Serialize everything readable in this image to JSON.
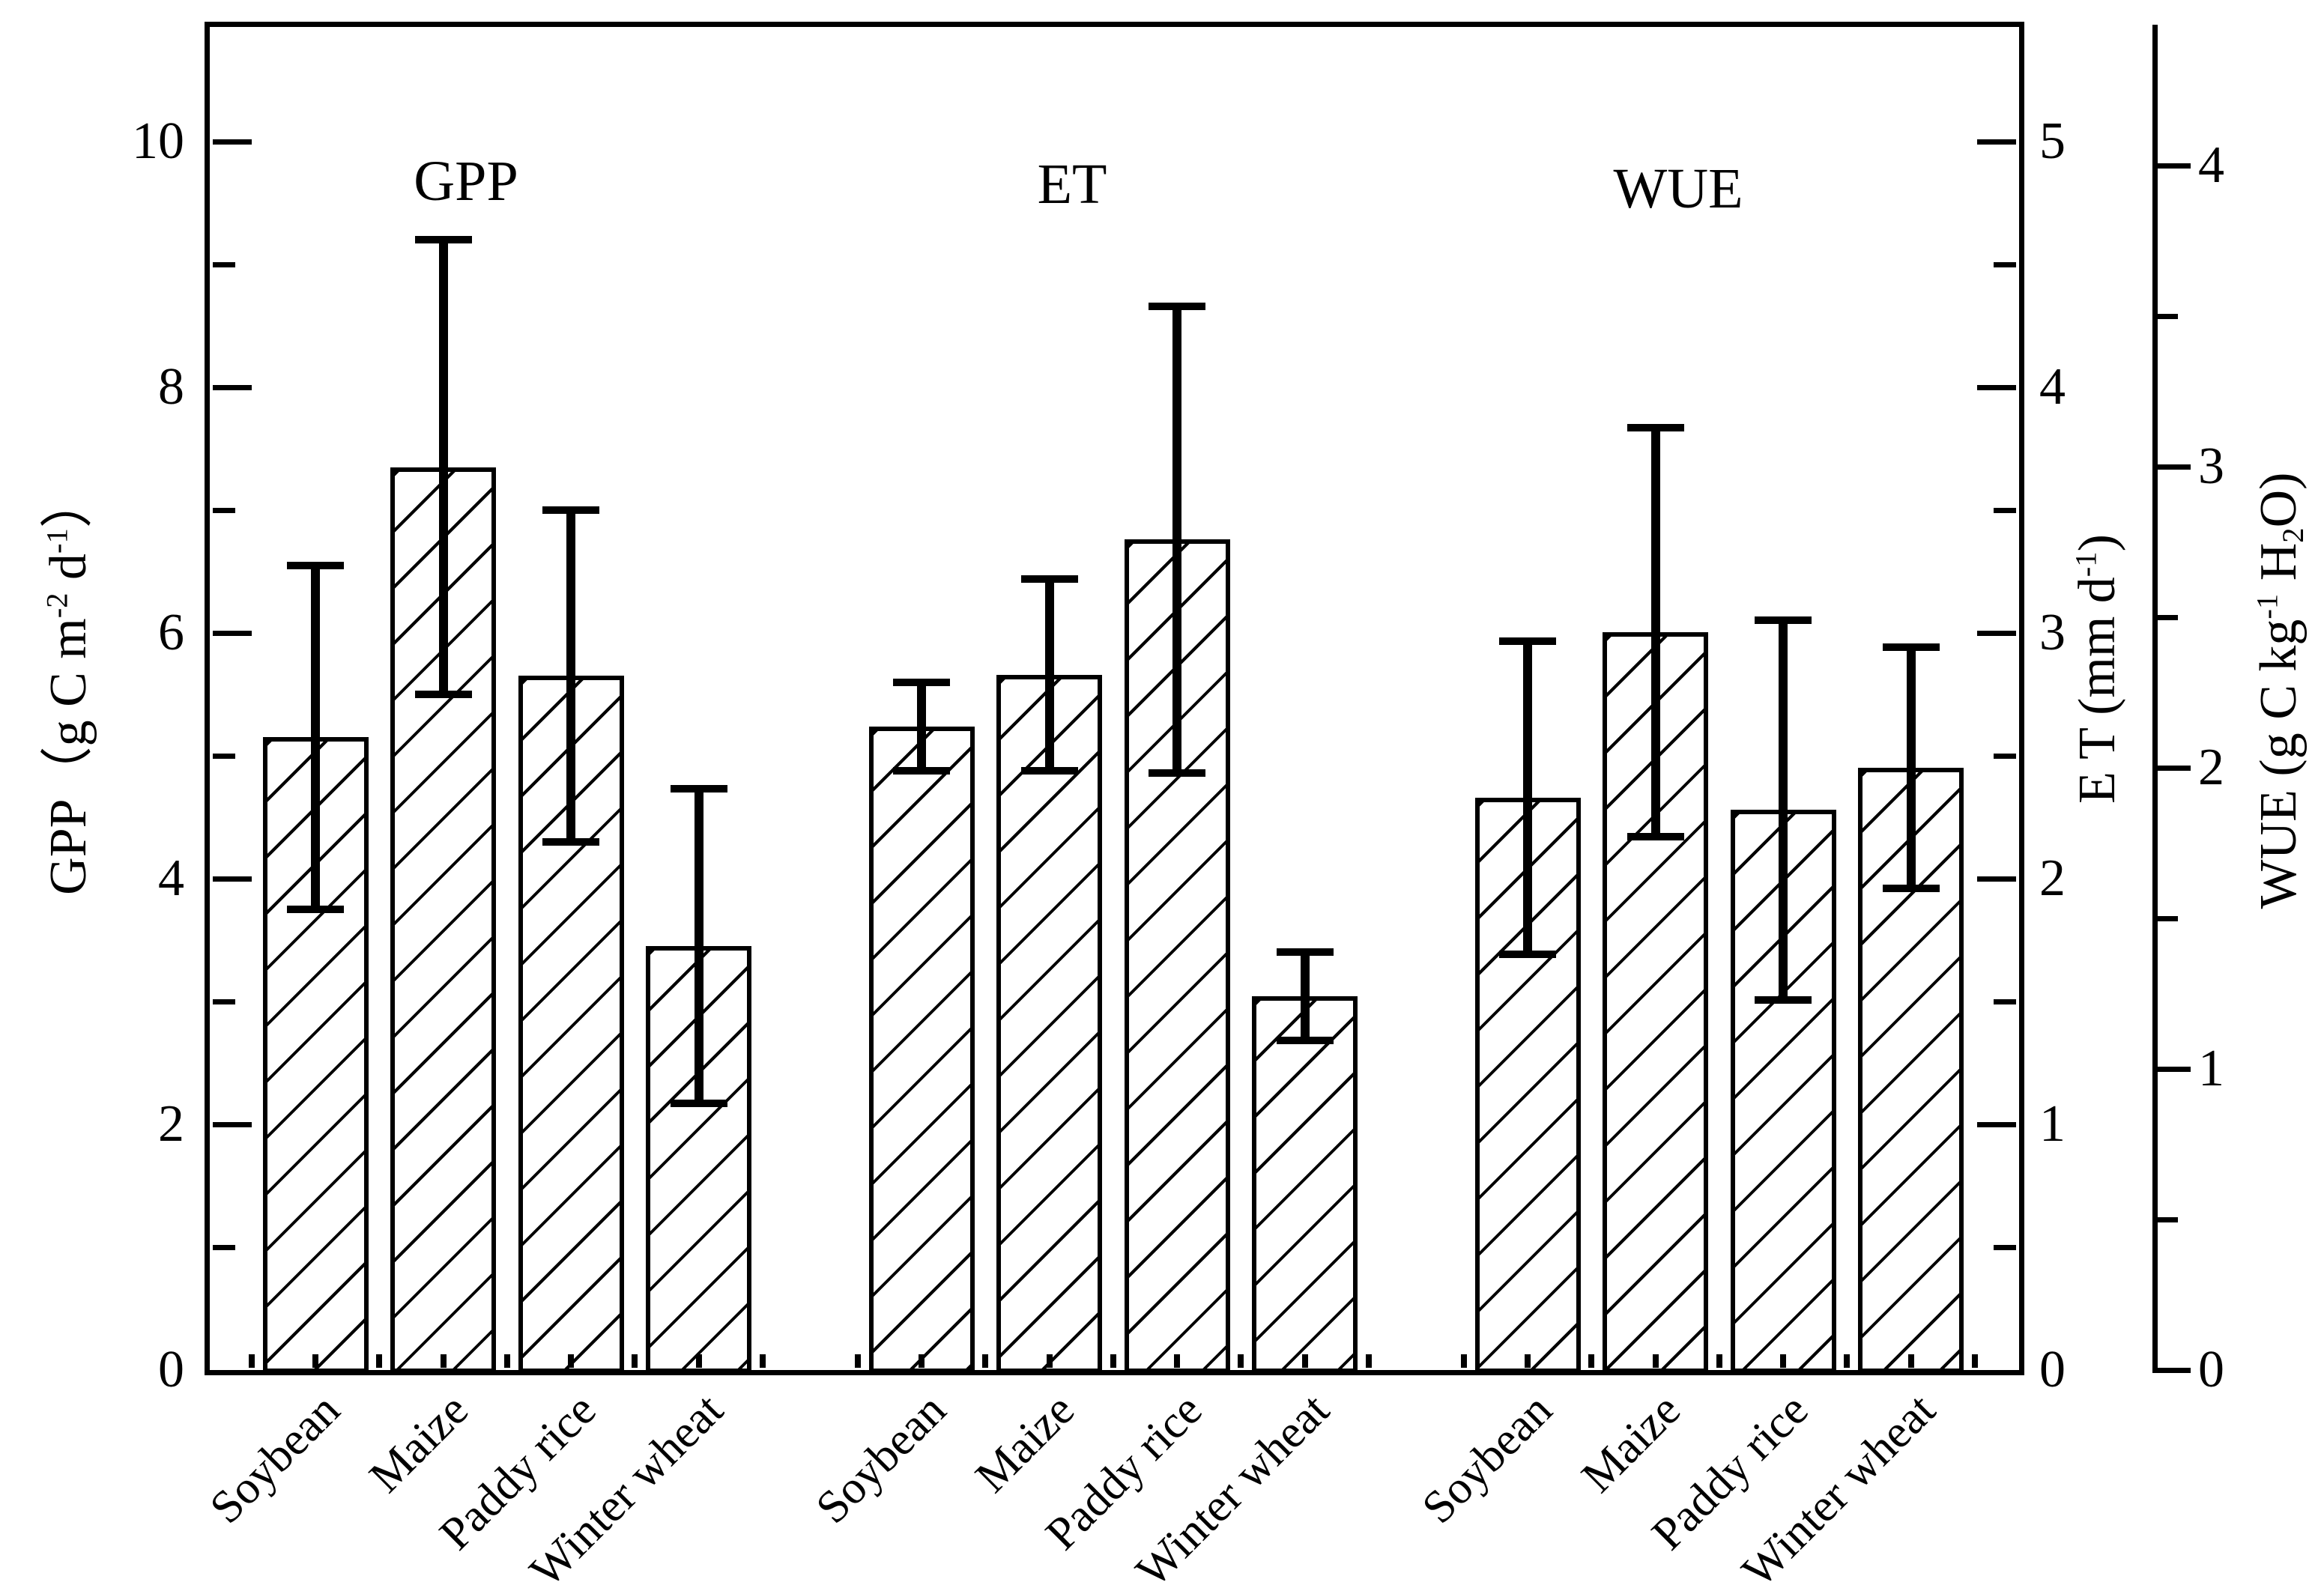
{
  "figure": {
    "background": "#ffffff",
    "ink": "#000000"
  },
  "chart_data": {
    "type": "bar",
    "title": "",
    "categories": [
      "Soybean",
      "Maize",
      "Paddy rice",
      "Winter wheat"
    ],
    "groups": [
      {
        "name": "GPP",
        "axis": "left",
        "values": [
          5.15,
          7.35,
          5.65,
          3.45
        ],
        "errors": [
          1.4,
          1.85,
          1.35,
          1.28
        ]
      },
      {
        "name": "ET",
        "axis": "et",
        "values": [
          2.62,
          2.83,
          3.38,
          1.52
        ],
        "errors": [
          0.18,
          0.39,
          0.95,
          0.18
        ]
      },
      {
        "name": "WUE",
        "axis": "wue",
        "values": [
          1.9,
          2.45,
          1.86,
          2.0
        ],
        "errors": [
          0.52,
          0.68,
          0.63,
          0.4
        ]
      }
    ],
    "axes": {
      "left": {
        "title_parts": [
          {
            "t": "GPP（g C m"
          },
          {
            "sup": "-2"
          },
          {
            "t": " d"
          },
          {
            "sup": "-1"
          },
          {
            "t": "）"
          }
        ],
        "tick_labels": [
          "0",
          "2",
          "4",
          "6",
          "8",
          "10"
        ],
        "tick_values": [
          0,
          2,
          4,
          6,
          8,
          10
        ],
        "minor_values": [
          1,
          3,
          5,
          7,
          9
        ],
        "range": [
          0,
          10
        ]
      },
      "et": {
        "title_parts": [
          {
            "t": "E T (mm d"
          },
          {
            "sup": "-1"
          },
          {
            "t": ")"
          }
        ],
        "tick_labels": [
          "0",
          "1",
          "2",
          "3",
          "4",
          "5"
        ],
        "tick_values": [
          0,
          1,
          2,
          3,
          4,
          5
        ],
        "minor_values": [
          0.5,
          1.5,
          2.5,
          3.5,
          4.5
        ],
        "range": [
          0,
          5
        ]
      },
      "wue": {
        "title_parts": [
          {
            "t": "WUE (g C kg"
          },
          {
            "sup": "-1"
          },
          {
            "t": " H"
          },
          {
            "sub": "2"
          },
          {
            "t": "O)"
          }
        ],
        "tick_labels": [
          "0",
          "1",
          "2",
          "3",
          "4"
        ],
        "tick_values": [
          0,
          1,
          2,
          3,
          4
        ],
        "minor_values": [
          0.5,
          1.5,
          2.5,
          3.5
        ],
        "range": [
          0,
          4
        ]
      }
    },
    "legend_position": "none",
    "grid": false,
    "bar_style": {
      "fill": "#ffffff",
      "hatch": "diagonal-forward",
      "outline": "#000000"
    }
  }
}
